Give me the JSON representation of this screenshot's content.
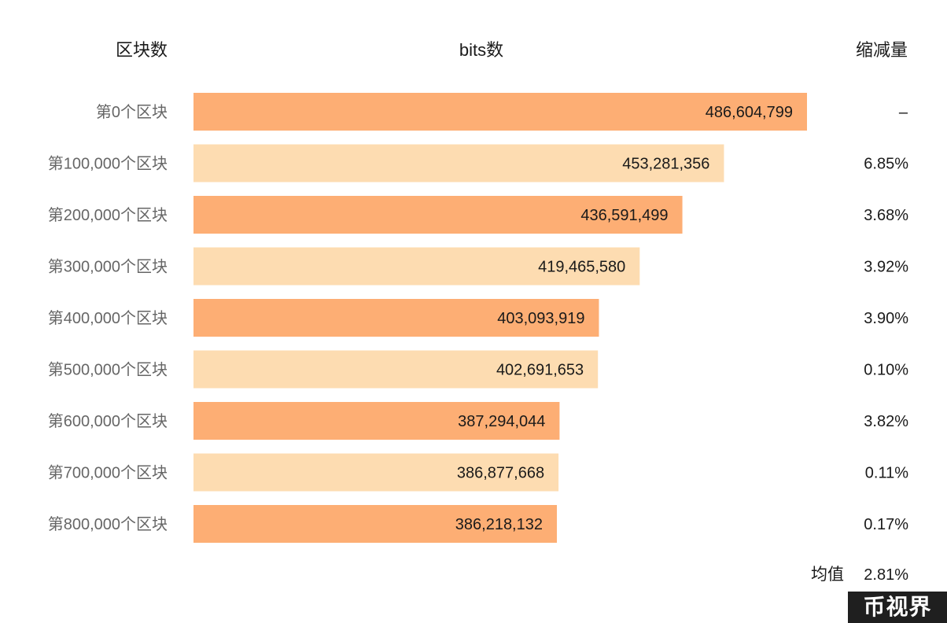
{
  "chart_data": {
    "type": "bar",
    "orientation": "horizontal",
    "headers": {
      "category": "区块数",
      "value": "bits数",
      "reduction": "缩减量"
    },
    "categories": [
      "第0个区块",
      "第100,000个区块",
      "第200,000个区块",
      "第300,000个区块",
      "第400,000个区块",
      "第500,000个区块",
      "第600,000个区块",
      "第700,000个区块",
      "第800,000个区块"
    ],
    "values": [
      486604799,
      453281356,
      436591499,
      419465580,
      403093919,
      402691653,
      387294044,
      386877668,
      386218132
    ],
    "value_labels": [
      "486,604,799",
      "453,281,356",
      "436,591,499",
      "419,465,580",
      "403,093,919",
      "402,691,653",
      "387,294,044",
      "386,877,668",
      "386,218,132"
    ],
    "reductions": [
      "–",
      "6.85%",
      "3.68%",
      "3.92%",
      "3.90%",
      "0.10%",
      "3.82%",
      "0.11%",
      "0.17%"
    ],
    "average": {
      "label": "均值",
      "value": "2.81%"
    },
    "colors": {
      "dark": "#fdae74",
      "light": "#fddcb1"
    }
  },
  "watermark": "币视界"
}
